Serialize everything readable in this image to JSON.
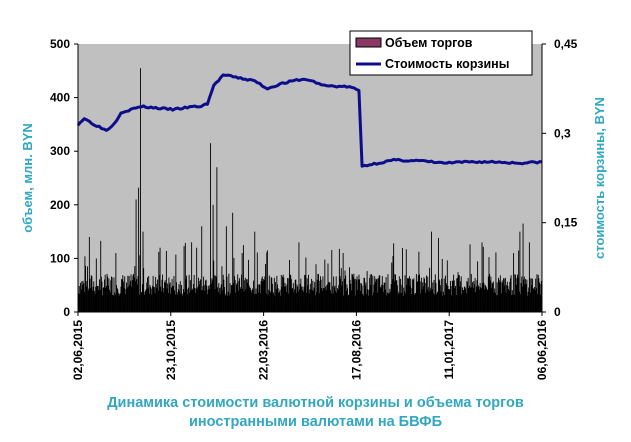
{
  "chart_data": {
    "type": "bar+line",
    "title_lines": [
      "Динамика стоимости валютной корзины и объема торгов",
      "иностранными валютами на БВФБ"
    ],
    "ylabel_left": "объем, млн. BYN",
    "ylabel_right": "стоимость корзины, BYN",
    "ylim_left": [
      0,
      500
    ],
    "ylim_right": [
      0,
      0.45
    ],
    "yticks_left": [
      "0",
      "100",
      "200",
      "300",
      "400",
      "500"
    ],
    "yticks_right": [
      "0",
      "0,15",
      "0,3",
      "0,45"
    ],
    "xticks": [
      "02,06,2015",
      "23,10,2015",
      "22,03,2016",
      "17,08,2016",
      "11,01,2017",
      "06,06,2016"
    ],
    "xlim_days": [
      0,
      735
    ],
    "legend": {
      "placement": "top-right",
      "entries": [
        "Объем торгов",
        "Стоимость корзины"
      ]
    },
    "series": [
      {
        "name": "Объем торгов",
        "kind": "bar",
        "color": "#000000",
        "baseline": 55,
        "spikes": [
          [
            18,
            140
          ],
          [
            60,
            110
          ],
          [
            92,
            210
          ],
          [
            96,
            232
          ],
          [
            99,
            455
          ],
          [
            103,
            150
          ],
          [
            130,
            120
          ],
          [
            180,
            130
          ],
          [
            188,
            120
          ],
          [
            196,
            160
          ],
          [
            210,
            315
          ],
          [
            214,
            200
          ],
          [
            220,
            270
          ],
          [
            235,
            160
          ],
          [
            245,
            185
          ],
          [
            260,
            110
          ],
          [
            280,
            150
          ],
          [
            300,
            115
          ],
          [
            350,
            130
          ],
          [
            420,
            110
          ],
          [
            500,
            128
          ],
          [
            560,
            150
          ],
          [
            640,
            130
          ],
          [
            690,
            110
          ],
          [
            700,
            150
          ],
          [
            705,
            165
          ],
          [
            715,
            130
          ]
        ]
      },
      {
        "name": "Стоимость корзины",
        "kind": "line",
        "color": "#0d0d8c",
        "points": [
          [
            0,
            0.315
          ],
          [
            10,
            0.325
          ],
          [
            22,
            0.317
          ],
          [
            45,
            0.305
          ],
          [
            58,
            0.317
          ],
          [
            68,
            0.335
          ],
          [
            100,
            0.345
          ],
          [
            150,
            0.34
          ],
          [
            185,
            0.345
          ],
          [
            195,
            0.345
          ],
          [
            205,
            0.35
          ],
          [
            215,
            0.38
          ],
          [
            230,
            0.398
          ],
          [
            250,
            0.394
          ],
          [
            280,
            0.388
          ],
          [
            300,
            0.375
          ],
          [
            320,
            0.383
          ],
          [
            350,
            0.39
          ],
          [
            365,
            0.39
          ],
          [
            390,
            0.38
          ],
          [
            430,
            0.378
          ],
          [
            445,
            0.372
          ],
          [
            450,
            0.245
          ],
          [
            500,
            0.255
          ],
          [
            540,
            0.254
          ],
          [
            580,
            0.25
          ],
          [
            620,
            0.252
          ],
          [
            660,
            0.252
          ],
          [
            700,
            0.25
          ],
          [
            735,
            0.252
          ]
        ]
      }
    ]
  }
}
